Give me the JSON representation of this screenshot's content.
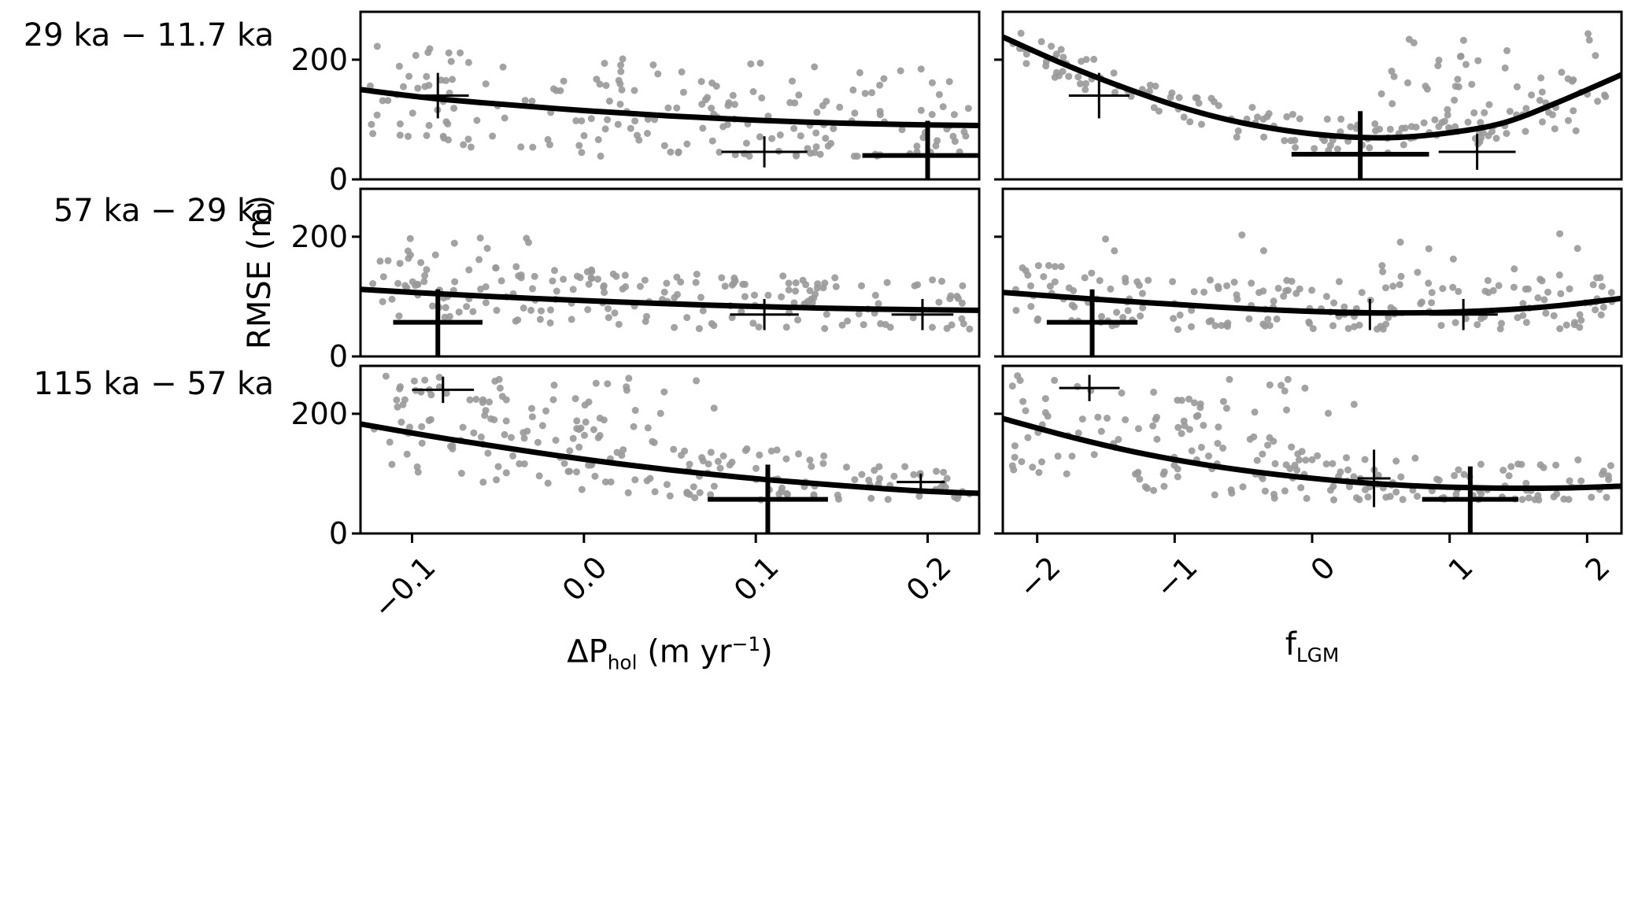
{
  "figure": {
    "row_labels": [
      "29 ka − 11.7 ka",
      "57 ka − 29 ka",
      "115 ka − 57 ka"
    ],
    "ylabel": "RMSE (m)",
    "xlabel_left": {
      "base": "ΔP",
      "sub": "hol",
      "mid": " (m yr",
      "sup": "−1",
      "end": ")"
    },
    "xlabel_right": {
      "base": "f",
      "sub": "LGM"
    },
    "colors": {
      "scatter": "#999999",
      "curve": "#000000",
      "cross": "#000000",
      "spine": "#000000",
      "background": "#ffffff"
    }
  },
  "chart_data": {
    "type": "scatter",
    "grid": {
      "rows": 3,
      "cols": 2
    },
    "title": "",
    "ylabel": "RMSE (m)",
    "ylim": [
      0,
      280
    ],
    "yticks": [
      {
        "v": 0,
        "label": "0"
      },
      {
        "v": 200,
        "label": "200"
      }
    ],
    "columns": [
      {
        "xlabel": "ΔP_hol (m yr−1)",
        "xlim": [
          -0.13,
          0.23
        ],
        "xticks": [
          {
            "v": -0.1,
            "label": "−0.1"
          },
          {
            "v": 0.0,
            "label": "0.0"
          },
          {
            "v": 0.1,
            "label": "0.1"
          },
          {
            "v": 0.2,
            "label": "0.2"
          }
        ]
      },
      {
        "xlabel": "f_LGM",
        "xlim": [
          -2.25,
          2.25
        ],
        "xticks": [
          {
            "v": -2,
            "label": "−2"
          },
          {
            "v": -1,
            "label": "−1"
          },
          {
            "v": 0,
            "label": "0"
          },
          {
            "v": 1,
            "label": "1"
          },
          {
            "v": 2,
            "label": "2"
          }
        ]
      }
    ],
    "panels": [
      {
        "row": 0,
        "col": 0,
        "period": "29 ka − 11.7 ka",
        "curve": [
          [
            -0.13,
            150
          ],
          [
            -0.09,
            136
          ],
          [
            -0.05,
            126
          ],
          [
            0.0,
            115
          ],
          [
            0.05,
            106
          ],
          [
            0.1,
            99
          ],
          [
            0.15,
            94
          ],
          [
            0.2,
            91
          ],
          [
            0.23,
            90
          ]
        ],
        "crosses": [
          {
            "x": -0.085,
            "y": 140,
            "xerr": 0.018,
            "yerr": 38,
            "w": 3
          },
          {
            "x": 0.105,
            "y": 46,
            "xerr": 0.025,
            "yerr": 26,
            "w": 3
          },
          {
            "x": 0.2,
            "y": 40,
            "xerr": 0.038,
            "yerr": 58,
            "w": 6
          }
        ],
        "scatter": {
          "seed": 11,
          "n": 205,
          "mode": "add",
          "a": 0.45,
          "b": 175,
          "floor": 38,
          "top": 260
        }
      },
      {
        "row": 0,
        "col": 1,
        "period": "29 ka − 11.7 ka",
        "curve": [
          [
            -2.25,
            238
          ],
          [
            -1.8,
            192
          ],
          [
            -1.4,
            156
          ],
          [
            -1.0,
            124
          ],
          [
            -0.6,
            99
          ],
          [
            -0.2,
            82
          ],
          [
            0.2,
            72
          ],
          [
            0.6,
            70
          ],
          [
            1.0,
            78
          ],
          [
            1.4,
            95
          ],
          [
            1.8,
            130
          ],
          [
            2.25,
            175
          ]
        ],
        "crosses": [
          {
            "x": -1.55,
            "y": 140,
            "xerr": 0.22,
            "yerr": 38,
            "w": 3
          },
          {
            "x": 0.35,
            "y": 42,
            "xerr": 0.5,
            "yerr": 72,
            "w": 6
          },
          {
            "x": 1.2,
            "y": 46,
            "xerr": 0.28,
            "yerr": 30,
            "w": 3
          }
        ],
        "scatter": {
          "seed": 22,
          "n": 190,
          "mode": "add",
          "a": 0.5,
          "b": 58,
          "floor": 40,
          "top": 260,
          "extra": {
            "frac": 0.28,
            "x": [
              0.5,
              2.15
            ],
            "y": [
              60,
              252
            ]
          }
        }
      },
      {
        "row": 1,
        "col": 0,
        "period": "57 ka − 29 ka",
        "curve": [
          [
            -0.13,
            112
          ],
          [
            -0.08,
            104
          ],
          [
            -0.03,
            97
          ],
          [
            0.02,
            91
          ],
          [
            0.07,
            86
          ],
          [
            0.12,
            82
          ],
          [
            0.17,
            79
          ],
          [
            0.23,
            77
          ]
        ],
        "crosses": [
          {
            "x": -0.085,
            "y": 57,
            "xerr": 0.026,
            "yerr": 55,
            "w": 6
          },
          {
            "x": 0.105,
            "y": 70,
            "xerr": 0.02,
            "yerr": 26,
            "w": 3
          },
          {
            "x": 0.197,
            "y": 70,
            "xerr": 0.018,
            "yerr": 26,
            "w": 3
          }
        ],
        "scatter": {
          "seed": 33,
          "n": 200,
          "mode": "add",
          "a": 0.45,
          "b": 95,
          "floor": 45,
          "top": 228,
          "extra": {
            "frac": 0.07,
            "x": [
              -0.12,
              -0.02
            ],
            "y": [
              140,
              200
            ]
          }
        }
      },
      {
        "row": 1,
        "col": 1,
        "period": "57 ka − 29 ka",
        "curve": [
          [
            -2.25,
            107
          ],
          [
            -1.6,
            96
          ],
          [
            -1.0,
            87
          ],
          [
            -0.4,
            79
          ],
          [
            0.2,
            74
          ],
          [
            0.8,
            73
          ],
          [
            1.4,
            78
          ],
          [
            1.8,
            85
          ],
          [
            2.25,
            97
          ]
        ],
        "crosses": [
          {
            "x": -1.6,
            "y": 57,
            "xerr": 0.33,
            "yerr": 55,
            "w": 6
          },
          {
            "x": 0.42,
            "y": 70,
            "xerr": 0.25,
            "yerr": 26,
            "w": 3
          },
          {
            "x": 1.1,
            "y": 70,
            "xerr": 0.25,
            "yerr": 26,
            "w": 3
          }
        ],
        "scatter": {
          "seed": 44,
          "n": 200,
          "mode": "add",
          "a": 0.45,
          "b": 95,
          "floor": 45,
          "top": 228,
          "extra": {
            "frac": 0.08,
            "x": [
              -2.1,
              2.1
            ],
            "y": [
              130,
              205
            ]
          }
        }
      },
      {
        "row": 2,
        "col": 0,
        "period": "115 ka − 57 ka",
        "curve": [
          [
            -0.13,
            183
          ],
          [
            -0.09,
            163
          ],
          [
            -0.05,
            145
          ],
          [
            -0.01,
            128
          ],
          [
            0.03,
            113
          ],
          [
            0.07,
            100
          ],
          [
            0.11,
            89
          ],
          [
            0.15,
            80
          ],
          [
            0.19,
            72
          ],
          [
            0.23,
            67
          ]
        ],
        "crosses": [
          {
            "x": -0.082,
            "y": 240,
            "xerr": 0.018,
            "yerr": 22,
            "w": 3
          },
          {
            "x": 0.107,
            "y": 57,
            "xerr": 0.035,
            "yerr": 58,
            "w": 6
          },
          {
            "x": 0.196,
            "y": 86,
            "xerr": 0.014,
            "yerr": 14,
            "w": 3
          }
        ],
        "scatter": {
          "seed": 55,
          "n": 215,
          "mode": "mul",
          "a": 0.55,
          "b": 1.05,
          "floor": 56,
          "top": 264,
          "extra": {
            "frac": 0.1,
            "x": [
              -0.115,
              0.08
            ],
            "y": [
              185,
              262
            ]
          }
        }
      },
      {
        "row": 2,
        "col": 1,
        "period": "115 ka − 57 ka",
        "curve": [
          [
            -2.25,
            192
          ],
          [
            -1.7,
            158
          ],
          [
            -1.2,
            132
          ],
          [
            -0.7,
            112
          ],
          [
            -0.2,
            97
          ],
          [
            0.3,
            86
          ],
          [
            0.8,
            79
          ],
          [
            1.3,
            76
          ],
          [
            1.8,
            76
          ],
          [
            2.25,
            79
          ]
        ],
        "crosses": [
          {
            "x": -1.62,
            "y": 243,
            "xerr": 0.22,
            "yerr": 22,
            "w": 3
          },
          {
            "x": 0.45,
            "y": 92,
            "xerr": 0.12,
            "yerr": 48,
            "w": 3
          },
          {
            "x": 1.15,
            "y": 57,
            "xerr": 0.35,
            "yerr": 55,
            "w": 6
          }
        ],
        "scatter": {
          "seed": 66,
          "n": 215,
          "mode": "mul",
          "a": 0.55,
          "b": 1.05,
          "floor": 56,
          "top": 264,
          "extra": {
            "frac": 0.09,
            "x": [
              -1.95,
              0.4
            ],
            "y": [
              185,
              258
            ]
          }
        }
      }
    ]
  }
}
